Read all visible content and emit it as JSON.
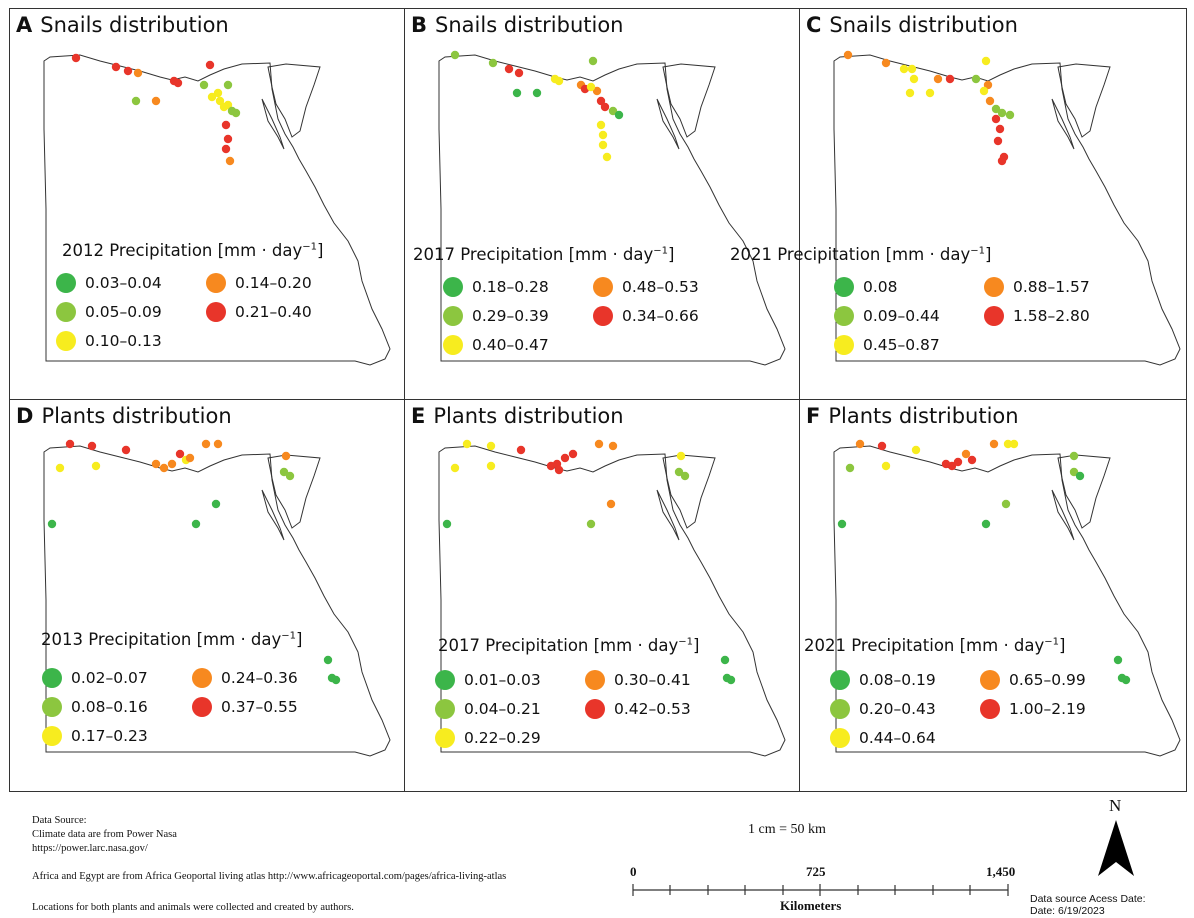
{
  "panels": [
    {
      "letter": "A",
      "title": "Snails distribution",
      "legend_title": "2012 Precipitation [mm · day",
      "legend_sup": "−1",
      "legend_close": "]",
      "items": [
        {
          "label": "0.03–0.04",
          "color": "#3cb54a"
        },
        {
          "label": "0.05–0.09",
          "color": "#8cc63f"
        },
        {
          "label": "0.10–0.13",
          "color": "#f7ec1f"
        },
        {
          "label": "0.14–0.20",
          "color": "#f7891f"
        },
        {
          "label": "0.21–0.40",
          "color": "#e8352a"
        }
      ]
    },
    {
      "letter": "B",
      "title": "Snails distribution",
      "legend_title": "2017 Precipitation [mm · day",
      "legend_sup": "−1",
      "legend_close": "]",
      "items": [
        {
          "label": "0.18–0.28",
          "color": "#3cb54a"
        },
        {
          "label": "0.29–0.39",
          "color": "#8cc63f"
        },
        {
          "label": "0.40–0.47",
          "color": "#f7ec1f"
        },
        {
          "label": "0.48–0.53",
          "color": "#f7891f"
        },
        {
          "label": "0.34–0.66",
          "color": "#e8352a"
        }
      ]
    },
    {
      "letter": "C",
      "title": "Snails distribution",
      "legend_title": "2021 Precipitation [mm · day",
      "legend_sup": "−1",
      "legend_close": "]",
      "items": [
        {
          "label": "0.08",
          "color": "#3cb54a"
        },
        {
          "label": "0.09–0.44",
          "color": "#8cc63f"
        },
        {
          "label": "0.45–0.87",
          "color": "#f7ec1f"
        },
        {
          "label": "0.88–1.57",
          "color": "#f7891f"
        },
        {
          "label": "1.58–2.80",
          "color": "#e8352a"
        }
      ]
    },
    {
      "letter": "D",
      "title": "Plants distribution",
      "legend_title": "2013 Precipitation [mm · day",
      "legend_sup": "−1",
      "legend_close": "]",
      "items": [
        {
          "label": "0.02–0.07",
          "color": "#3cb54a"
        },
        {
          "label": "0.08–0.16",
          "color": "#8cc63f"
        },
        {
          "label": "0.17–0.23",
          "color": "#f7ec1f"
        },
        {
          "label": "0.24–0.36",
          "color": "#f7891f"
        },
        {
          "label": "0.37–0.55",
          "color": "#e8352a"
        }
      ]
    },
    {
      "letter": "E",
      "title": "Plants distribution",
      "legend_title": "2017 Precipitation [mm · day",
      "legend_sup": "−1",
      "legend_close": "]",
      "items": [
        {
          "label": "0.01–0.03",
          "color": "#3cb54a"
        },
        {
          "label": "0.04–0.21",
          "color": "#8cc63f"
        },
        {
          "label": "0.22–0.29",
          "color": "#f7ec1f"
        },
        {
          "label": "0.30–0.41",
          "color": "#f7891f"
        },
        {
          "label": "0.42–0.53",
          "color": "#e8352a"
        }
      ]
    },
    {
      "letter": "F",
      "title": "Plants distribution",
      "legend_title": "2021 Precipitation [mm · day",
      "legend_sup": "−1",
      "legend_close": "]",
      "items": [
        {
          "label": "0.08–0.19",
          "color": "#3cb54a"
        },
        {
          "label": "0.20–0.43",
          "color": "#8cc63f"
        },
        {
          "label": "0.44–0.64",
          "color": "#f7ec1f"
        },
        {
          "label": "0.65–0.99",
          "color": "#f7891f"
        },
        {
          "label": "1.00–2.19",
          "color": "#e8352a"
        }
      ]
    }
  ],
  "footer": {
    "data_source_heading": "Data Source:",
    "climate": "Climate data are from Power Nasa",
    "climate_url": "https://power.larc.nasa.gov/",
    "atlas": "Africa and Egypt are from Africa Geoportal living atlas http://www.africageoportal.com/pages/africa-living-atlas",
    "locations": "Locations for both plants and animals were collected and created by authors.",
    "scale_ratio": "1 cm = 50 km",
    "scale_labels": [
      "0",
      "725",
      "1,450"
    ],
    "scale_unit": "Kilometers",
    "north": "N",
    "access_line1": "Data source Acess Date:",
    "access_line2": "Date: 6/19/2023"
  }
}
